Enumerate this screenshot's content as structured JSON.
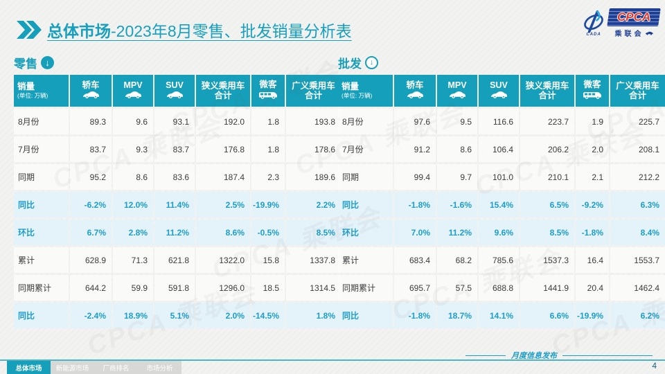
{
  "page": {
    "title_bold": "总体市场",
    "title_rest": "-2023年8月零售、批发销量分析表",
    "footer_note": "月度信息发布",
    "page_number": "4",
    "watermark": "CPCA 乘联会"
  },
  "logo": {
    "cpca": "CPCA",
    "cn": "乘联会",
    "cada": "CADA"
  },
  "accent_colors": {
    "teal": "#169fba",
    "highlight_text": "#1c9dca",
    "highlight_bg": "#e4f2fa",
    "logo_blue": "#1d3f96",
    "logo_red": "#e0392b"
  },
  "tables": {
    "columns": [
      {
        "label": "销量",
        "sub": "(单位: 万辆)",
        "icon": null
      },
      {
        "label": "轿车",
        "sub": null,
        "icon": "sedan-icon"
      },
      {
        "label": "MPV",
        "sub": null,
        "icon": "mpv-icon"
      },
      {
        "label": "SUV",
        "sub": null,
        "icon": "suv-icon"
      },
      {
        "label": "狭义乘用车",
        "label2": "合计",
        "icon": null
      },
      {
        "label": "微客",
        "sub": null,
        "icon": "van-icon"
      },
      {
        "label": "广义乘用车",
        "label2": "合计",
        "icon": null
      }
    ],
    "retail": {
      "section_label": "零售",
      "rows": [
        {
          "label": "8月份",
          "type": "normal",
          "values": [
            "89.3",
            "9.6",
            "93.1",
            "192.0",
            "1.8",
            "193.8"
          ]
        },
        {
          "label": "7月份",
          "type": "normal",
          "values": [
            "83.7",
            "9.3",
            "83.7",
            "176.8",
            "1.8",
            "178.6"
          ]
        },
        {
          "label": "同期",
          "type": "normal",
          "values": [
            "95.2",
            "8.6",
            "83.6",
            "187.4",
            "2.3",
            "189.6"
          ]
        },
        {
          "label": "同比",
          "type": "highlight",
          "values": [
            "-6.2%",
            "12.0%",
            "11.4%",
            "2.5%",
            "-19.9%",
            "2.2%"
          ]
        },
        {
          "label": "环比",
          "type": "highlight",
          "values": [
            "6.7%",
            "2.8%",
            "11.2%",
            "8.6%",
            "-0.5%",
            "8.5%"
          ]
        },
        {
          "label": "累计",
          "type": "normal",
          "values": [
            "628.9",
            "71.3",
            "621.8",
            "1322.0",
            "15.8",
            "1337.8"
          ]
        },
        {
          "label": "同期累计",
          "type": "normal",
          "values": [
            "644.2",
            "59.9",
            "591.8",
            "1296.0",
            "18.5",
            "1314.5"
          ]
        },
        {
          "label": "同比",
          "type": "highlight",
          "values": [
            "-2.4%",
            "18.9%",
            "5.1%",
            "2.0%",
            "-14.5%",
            "1.8%"
          ]
        }
      ]
    },
    "wholesale": {
      "section_label": "批发",
      "rows": [
        {
          "label": "8月份",
          "type": "normal",
          "values": [
            "97.6",
            "9.5",
            "116.6",
            "223.7",
            "1.9",
            "225.7"
          ]
        },
        {
          "label": "7月份",
          "type": "normal",
          "values": [
            "91.2",
            "8.6",
            "106.4",
            "206.2",
            "2.0",
            "208.1"
          ]
        },
        {
          "label": "同期",
          "type": "normal",
          "values": [
            "99.4",
            "9.7",
            "101.0",
            "210.1",
            "2.1",
            "212.2"
          ]
        },
        {
          "label": "同比",
          "type": "highlight",
          "values": [
            "-1.8%",
            "-1.6%",
            "15.4%",
            "6.5%",
            "-9.2%",
            "6.3%"
          ]
        },
        {
          "label": "环比",
          "type": "highlight",
          "values": [
            "7.0%",
            "11.2%",
            "9.6%",
            "8.5%",
            "-1.8%",
            "8.4%"
          ]
        },
        {
          "label": "累计",
          "type": "normal",
          "values": [
            "683.4",
            "68.2",
            "785.6",
            "1537.3",
            "16.4",
            "1553.7"
          ]
        },
        {
          "label": "同期累计",
          "type": "normal",
          "values": [
            "695.7",
            "57.5",
            "688.8",
            "1441.9",
            "20.4",
            "1462.4"
          ]
        },
        {
          "label": "同比",
          "type": "highlight",
          "values": [
            "-1.8%",
            "18.7%",
            "14.1%",
            "6.6%",
            "-19.9%",
            "6.2%"
          ]
        }
      ]
    }
  },
  "footer_tabs": [
    {
      "label": "总体市场",
      "active": true
    },
    {
      "label": "新能源市场",
      "active": false
    },
    {
      "label": "厂商排名",
      "active": false
    },
    {
      "label": "市场分析",
      "active": false
    }
  ]
}
